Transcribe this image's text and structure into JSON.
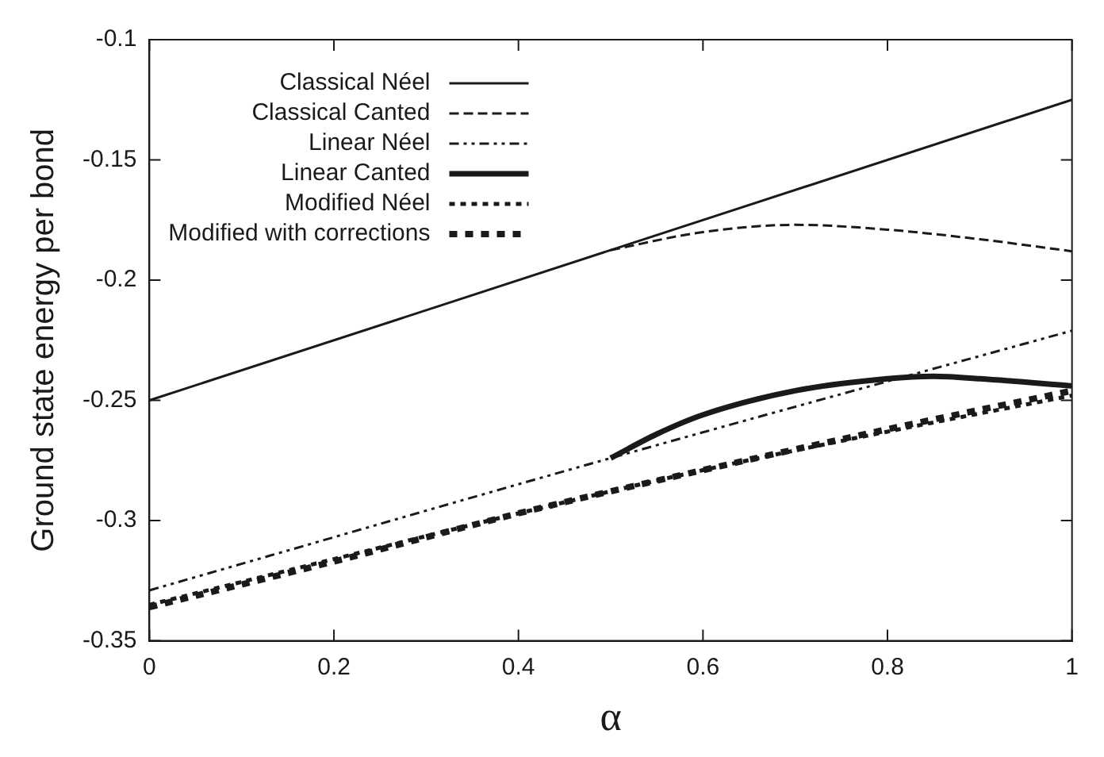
{
  "chart_data": {
    "type": "line",
    "xlabel": "α",
    "ylabel": "Ground state energy per bond",
    "xlim": [
      0,
      1
    ],
    "xticks": [
      0,
      0.2,
      0.4,
      0.6,
      0.8,
      1
    ],
    "ylim": [
      -0.35,
      -0.1
    ],
    "yticks": [
      -0.35,
      -0.3,
      -0.25,
      -0.2,
      -0.15,
      -0.1
    ],
    "grid": false,
    "legend": "top left",
    "marker": "none",
    "series": [
      {
        "name": "Classical Néel",
        "color": "#1a1a1a",
        "line_style": "solid",
        "x": [
          0,
          1
        ],
        "values": [
          -0.25,
          -0.125
        ]
      },
      {
        "name": "Classical Canted",
        "color": "#1a1a1a",
        "line_style": "dashed",
        "x": [
          0.5,
          0.6,
          0.7,
          0.8,
          0.9,
          1
        ],
        "values": [
          -0.1875,
          -0.18,
          -0.177,
          -0.179,
          -0.183,
          -0.188
        ]
      },
      {
        "name": "Linear Néel",
        "color": "#1a1a1a",
        "line_style": "dotted",
        "x": [
          0,
          0.5,
          1
        ],
        "values": [
          -0.329,
          -0.274,
          -0.221
        ]
      },
      {
        "name": "Linear Canted",
        "color": "#1a1a1a",
        "line_style": "solid",
        "x": [
          0.5,
          0.55,
          0.6,
          0.7,
          0.8,
          0.85,
          0.9,
          1
        ],
        "values": [
          -0.274,
          -0.264,
          -0.256,
          -0.246,
          -0.241,
          -0.24,
          -0.241,
          -0.244
        ]
      },
      {
        "name": "Modified Néel",
        "color": "#1a1a1a",
        "line_style": "dotted",
        "x": [
          0,
          0.2,
          0.4,
          0.6,
          0.8,
          1
        ],
        "values": [
          -0.335,
          -0.316,
          -0.297,
          -0.279,
          -0.263,
          -0.248
        ]
      },
      {
        "name": "Modified with corrections",
        "color": "#1a1a1a",
        "line_style": "dotted",
        "x": [
          0,
          0.2,
          0.4,
          0.6,
          0.8,
          1
        ],
        "values": [
          -0.336,
          -0.317,
          -0.297,
          -0.279,
          -0.262,
          -0.246
        ]
      }
    ]
  }
}
